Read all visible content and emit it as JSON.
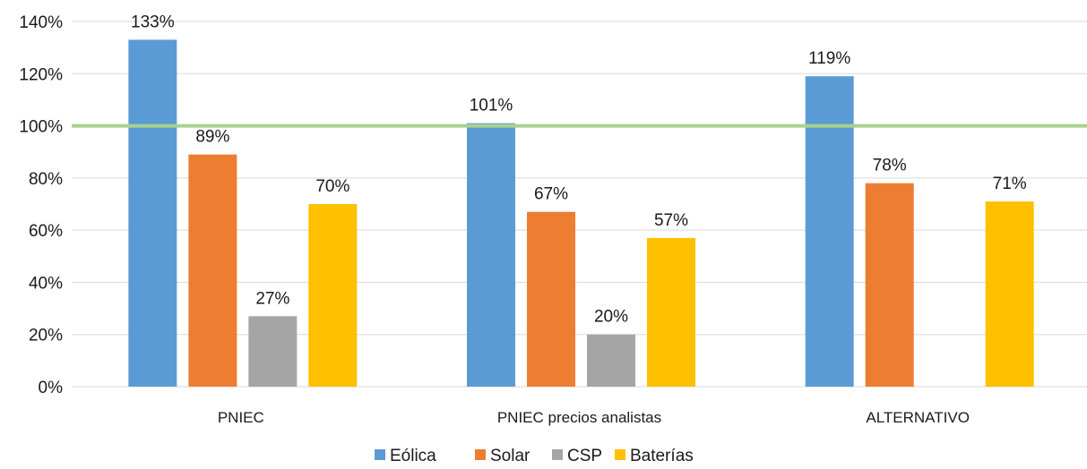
{
  "chart_data": {
    "type": "bar",
    "title": "",
    "xlabel": "",
    "ylabel": "",
    "categories": [
      "PNIEC",
      "PNIEC precios analistas",
      "ALTERNATIVO"
    ],
    "series": [
      {
        "name": "Eólica",
        "color": "#5B9BD5",
        "values": [
          133,
          101,
          119
        ],
        "labels": [
          "133%",
          "101%",
          "119%"
        ]
      },
      {
        "name": "Solar",
        "color": "#ED7D31",
        "values": [
          89,
          67,
          78
        ],
        "labels": [
          "89%",
          "67%",
          "78%"
        ]
      },
      {
        "name": "CSP",
        "color": "#A5A5A5",
        "values": [
          27,
          20,
          null
        ],
        "labels": [
          "27%",
          "20%",
          ""
        ]
      },
      {
        "name": "Baterías",
        "color": "#FFC000",
        "values": [
          70,
          57,
          71
        ],
        "labels": [
          "70%",
          "57%",
          "71%"
        ]
      }
    ],
    "ylim": [
      0,
      140
    ],
    "yticks": [
      0,
      20,
      40,
      60,
      80,
      100,
      120,
      140
    ],
    "ytick_labels": [
      "0%",
      "20%",
      "40%",
      "60%",
      "80%",
      "100%",
      "120%",
      "140%"
    ],
    "reference_line": {
      "value": 100,
      "color": "#A9D18E"
    },
    "grid": true,
    "legend": "bottom"
  }
}
